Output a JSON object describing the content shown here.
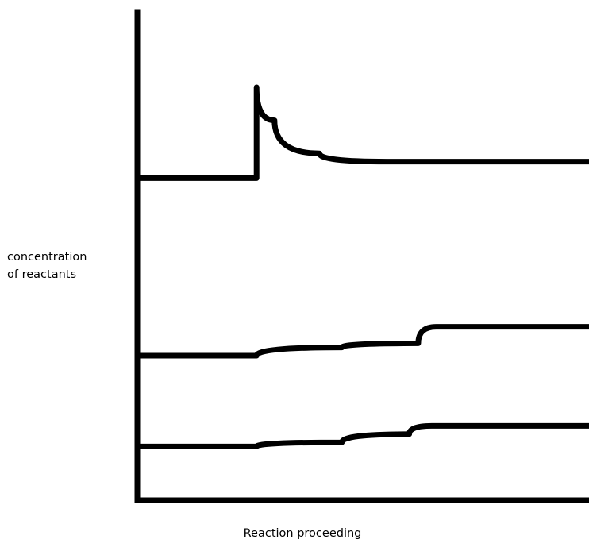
{
  "chart_data": {
    "type": "line",
    "xlabel": "Reaction proceeding",
    "ylabel_lines": [
      "concentration",
      "of reactants"
    ],
    "axis_ticks_shown": false,
    "grid": false,
    "legend": "none",
    "line_color": "#000000",
    "series": [
      {
        "points": [
          [
            0,
            0.78
          ],
          [
            0.26,
            0.78
          ],
          [
            0.26,
            1.0
          ],
          [
            0.3,
            0.92
          ],
          [
            0.4,
            0.84
          ],
          [
            0.55,
            0.82
          ],
          [
            0.66,
            0.82
          ],
          [
            1.0,
            0.82
          ]
        ]
      },
      {
        "points": [
          [
            0,
            0.35
          ],
          [
            0.26,
            0.35
          ],
          [
            0.45,
            0.37
          ],
          [
            0.62,
            0.38
          ],
          [
            0.66,
            0.42
          ],
          [
            1.0,
            0.42
          ]
        ]
      },
      {
        "points": [
          [
            0,
            0.13
          ],
          [
            0.26,
            0.13
          ],
          [
            0.45,
            0.14
          ],
          [
            0.6,
            0.16
          ],
          [
            0.65,
            0.18
          ],
          [
            1.0,
            0.18
          ]
        ]
      }
    ]
  }
}
